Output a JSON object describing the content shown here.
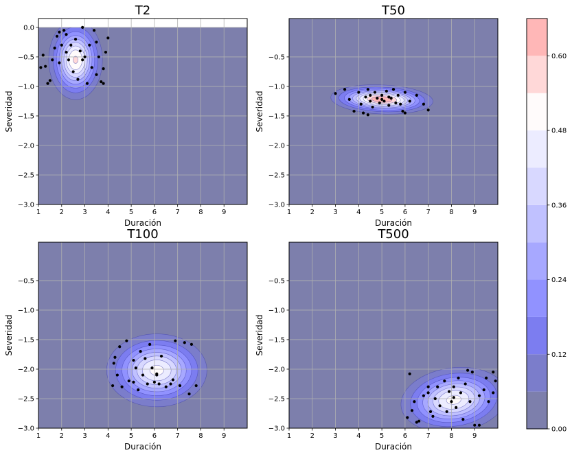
{
  "chart_data": [
    {
      "type": "contour",
      "title": "T2",
      "xlabel": "Duración",
      "ylabel": "Severidad",
      "xlim": [
        1,
        10
      ],
      "ylim": [
        -3,
        0.15
      ],
      "xticks": [
        1,
        2,
        3,
        4,
        5,
        6,
        7,
        8,
        9
      ],
      "yticks": [
        0.0,
        -0.5,
        -1.0,
        -1.5,
        -2.0,
        -2.5,
        -3.0
      ],
      "ytick_labels": [
        "0.0",
        "−0.5",
        "−1.0",
        "−1.5",
        "−2.0",
        "−2.5",
        "−3.0"
      ],
      "grid": true,
      "mask_above": 0,
      "density": {
        "mean": [
          2.6,
          -0.55
        ],
        "sd": [
          0.55,
          0.32
        ],
        "rho": 0,
        "peak": 0.55
      },
      "points": [
        [
          1.2,
          -0.47
        ],
        [
          1.3,
          -0.66
        ],
        [
          1.5,
          -0.9
        ],
        [
          1.6,
          -0.55
        ],
        [
          1.7,
          -0.35
        ],
        [
          1.8,
          -0.15
        ],
        [
          1.9,
          -0.08
        ],
        [
          2.0,
          -0.3
        ],
        [
          2.1,
          -0.05
        ],
        [
          2.2,
          -0.42
        ],
        [
          2.3,
          -0.55
        ],
        [
          2.4,
          -0.3
        ],
        [
          2.5,
          -0.75
        ],
        [
          2.6,
          -0.2
        ],
        [
          2.7,
          -0.88
        ],
        [
          2.8,
          -0.4
        ],
        [
          2.9,
          0.0
        ],
        [
          3.0,
          -0.5
        ],
        [
          3.1,
          -0.95
        ],
        [
          3.2,
          -0.3
        ],
        [
          3.3,
          -0.68
        ],
        [
          3.4,
          -0.05
        ],
        [
          3.5,
          -0.25
        ],
        [
          3.6,
          -0.5
        ],
        [
          3.7,
          -0.92
        ],
        [
          3.8,
          -0.7
        ],
        [
          3.9,
          -0.42
        ],
        [
          4.0,
          -0.18
        ],
        [
          1.4,
          -0.95
        ],
        [
          2.2,
          -0.12
        ],
        [
          3.5,
          -0.8
        ],
        [
          1.9,
          -0.6
        ],
        [
          3.8,
          -0.95
        ],
        [
          2.9,
          -0.55
        ],
        [
          1.1,
          -0.68
        ]
      ]
    },
    {
      "type": "contour",
      "title": "T50",
      "xlabel": "Duración",
      "ylabel": "Severidad",
      "xlim": [
        1,
        10
      ],
      "ylim": [
        -3,
        0.15
      ],
      "xticks": [
        1,
        2,
        3,
        4,
        5,
        6,
        7,
        8,
        9
      ],
      "yticks": [
        -0.5,
        -1.0,
        -1.5,
        -2.0,
        -2.5,
        -3.0
      ],
      "ytick_labels": [
        "−0.5",
        "−1.0",
        "−1.5",
        "−2.0",
        "−2.5",
        "−3.0"
      ],
      "grid": true,
      "density": {
        "mean": [
          5.0,
          -1.22
        ],
        "sd": [
          1.0,
          0.12
        ],
        "rho": -0.35,
        "peak": 0.66
      },
      "points": [
        [
          3.0,
          -1.12
        ],
        [
          3.4,
          -1.05
        ],
        [
          3.6,
          -1.22
        ],
        [
          3.8,
          -1.42
        ],
        [
          4.0,
          -1.1
        ],
        [
          4.1,
          -1.3
        ],
        [
          4.2,
          -1.45
        ],
        [
          4.3,
          -1.18
        ],
        [
          4.4,
          -1.05
        ],
        [
          4.5,
          -1.25
        ],
        [
          4.6,
          -1.35
        ],
        [
          4.7,
          -1.1
        ],
        [
          4.8,
          -1.2
        ],
        [
          4.9,
          -1.28
        ],
        [
          5.0,
          -1.15
        ],
        [
          5.1,
          -1.25
        ],
        [
          5.2,
          -1.08
        ],
        [
          5.3,
          -1.32
        ],
        [
          5.4,
          -1.2
        ],
        [
          5.5,
          -1.05
        ],
        [
          5.6,
          -1.28
        ],
        [
          5.7,
          -1.15
        ],
        [
          5.8,
          -1.3
        ],
        [
          5.9,
          -1.42
        ],
        [
          6.0,
          -1.1
        ],
        [
          6.2,
          -1.25
        ],
        [
          6.5,
          -1.15
        ],
        [
          6.8,
          -1.3
        ],
        [
          7.0,
          -1.4
        ],
        [
          4.5,
          -1.15
        ],
        [
          5.0,
          -1.22
        ],
        [
          5.3,
          -1.18
        ],
        [
          4.4,
          -1.48
        ],
        [
          6.0,
          -1.45
        ]
      ]
    },
    {
      "type": "contour",
      "title": "T100",
      "xlabel": "Duración",
      "ylabel": "Severidad",
      "xlim": [
        1,
        10
      ],
      "ylim": [
        -3,
        0.15
      ],
      "xticks": [
        1,
        2,
        3,
        4,
        5,
        6,
        7,
        8,
        9
      ],
      "yticks": [
        -0.5,
        -1.0,
        -1.5,
        -2.0,
        -2.5,
        -3.0
      ],
      "ytick_labels": [
        "−0.5",
        "−1.0",
        "−1.5",
        "−2.0",
        "−2.5",
        "−3.0"
      ],
      "grid": true,
      "density": {
        "mean": [
          6.1,
          -2.02
        ],
        "sd": [
          1.05,
          0.3
        ],
        "rho": 0,
        "peak": 0.5
      },
      "points": [
        [
          4.2,
          -2.28
        ],
        [
          4.25,
          -1.9
        ],
        [
          4.3,
          -1.8
        ],
        [
          4.4,
          -2.1
        ],
        [
          4.5,
          -1.62
        ],
        [
          4.6,
          -2.3
        ],
        [
          4.8,
          -1.52
        ],
        [
          4.9,
          -2.2
        ],
        [
          5.1,
          -2.22
        ],
        [
          5.2,
          -1.98
        ],
        [
          5.3,
          -2.35
        ],
        [
          5.4,
          -1.7
        ],
        [
          5.5,
          -2.1
        ],
        [
          5.6,
          -1.82
        ],
        [
          5.7,
          -2.25
        ],
        [
          5.8,
          -1.58
        ],
        [
          5.9,
          -1.98
        ],
        [
          6.0,
          -2.22
        ],
        [
          6.1,
          -2.08
        ],
        [
          6.2,
          -2.25
        ],
        [
          6.3,
          -1.78
        ],
        [
          6.5,
          -2.3
        ],
        [
          6.7,
          -2.25
        ],
        [
          6.8,
          -2.18
        ],
        [
          6.9,
          -1.52
        ],
        [
          7.1,
          -2.28
        ],
        [
          7.3,
          -1.55
        ],
        [
          7.5,
          -2.42
        ],
        [
          7.6,
          -1.58
        ],
        [
          7.8,
          -2.28
        ],
        [
          6.1,
          -2.1
        ],
        [
          5.1,
          -1.85
        ]
      ]
    },
    {
      "type": "contour",
      "title": "T500",
      "xlabel": "Duración",
      "ylabel": "Severidad",
      "xlim": [
        1,
        10
      ],
      "ylim": [
        -3,
        0.15
      ],
      "xticks": [
        1,
        2,
        3,
        4,
        5,
        6,
        7,
        8,
        9
      ],
      "yticks": [
        -0.5,
        -1.0,
        -1.5,
        -2.0,
        -2.5,
        -3.0
      ],
      "ytick_labels": [
        "−0.5",
        "−1.0",
        "−1.5",
        "−2.0",
        "−2.5",
        "−3.0"
      ],
      "grid": true,
      "density": {
        "mean": [
          8.1,
          -2.52
        ],
        "sd": [
          1.05,
          0.3
        ],
        "rho": 0.45,
        "peak": 0.5
      },
      "points": [
        [
          6.1,
          -2.82
        ],
        [
          6.2,
          -2.08
        ],
        [
          6.3,
          -2.7
        ],
        [
          6.4,
          -2.55
        ],
        [
          6.5,
          -2.9
        ],
        [
          6.6,
          -2.88
        ],
        [
          6.8,
          -2.45
        ],
        [
          7.0,
          -2.4
        ],
        [
          7.1,
          -2.72
        ],
        [
          7.2,
          -2.8
        ],
        [
          7.3,
          -2.5
        ],
        [
          7.4,
          -2.3
        ],
        [
          7.5,
          -2.62
        ],
        [
          7.7,
          -2.2
        ],
        [
          7.8,
          -2.72
        ],
        [
          7.9,
          -2.38
        ],
        [
          8.0,
          -2.55
        ],
        [
          8.1,
          -2.3
        ],
        [
          8.2,
          -2.65
        ],
        [
          8.3,
          -2.15
        ],
        [
          8.4,
          -2.4
        ],
        [
          8.5,
          -2.85
        ],
        [
          8.6,
          -2.25
        ],
        [
          8.7,
          -2.02
        ],
        [
          8.8,
          -2.55
        ],
        [
          8.9,
          -2.05
        ],
        [
          9.0,
          -2.95
        ],
        [
          9.2,
          -2.45
        ],
        [
          9.4,
          -2.35
        ],
        [
          9.5,
          -2.15
        ],
        [
          9.6,
          -2.55
        ],
        [
          9.8,
          -2.05
        ],
        [
          9.9,
          -2.2
        ],
        [
          7.0,
          -2.3
        ],
        [
          8.1,
          -2.48
        ],
        [
          9.2,
          -2.95
        ],
        [
          9.8,
          -2.4
        ]
      ]
    }
  ],
  "colorbar": {
    "levels": [
      0.0,
      0.06,
      0.12,
      0.18,
      0.24,
      0.3,
      0.36,
      0.42,
      0.48,
      0.54,
      0.6,
      0.66
    ],
    "tick_values": [
      0.0,
      0.12,
      0.24,
      0.36,
      0.48,
      0.6
    ],
    "tick_labels": [
      "0.00",
      "0.12",
      "0.24",
      "0.36",
      "0.48",
      "0.60"
    ],
    "colors": [
      "#7d7fac",
      "#7b7dcb",
      "#7c7df0",
      "#9192ff",
      "#a7a8ff",
      "#c0c1ff",
      "#d8d8ff",
      "#ececff",
      "#fffbfb",
      "#ffd8d8",
      "#ffb7b7"
    ]
  }
}
